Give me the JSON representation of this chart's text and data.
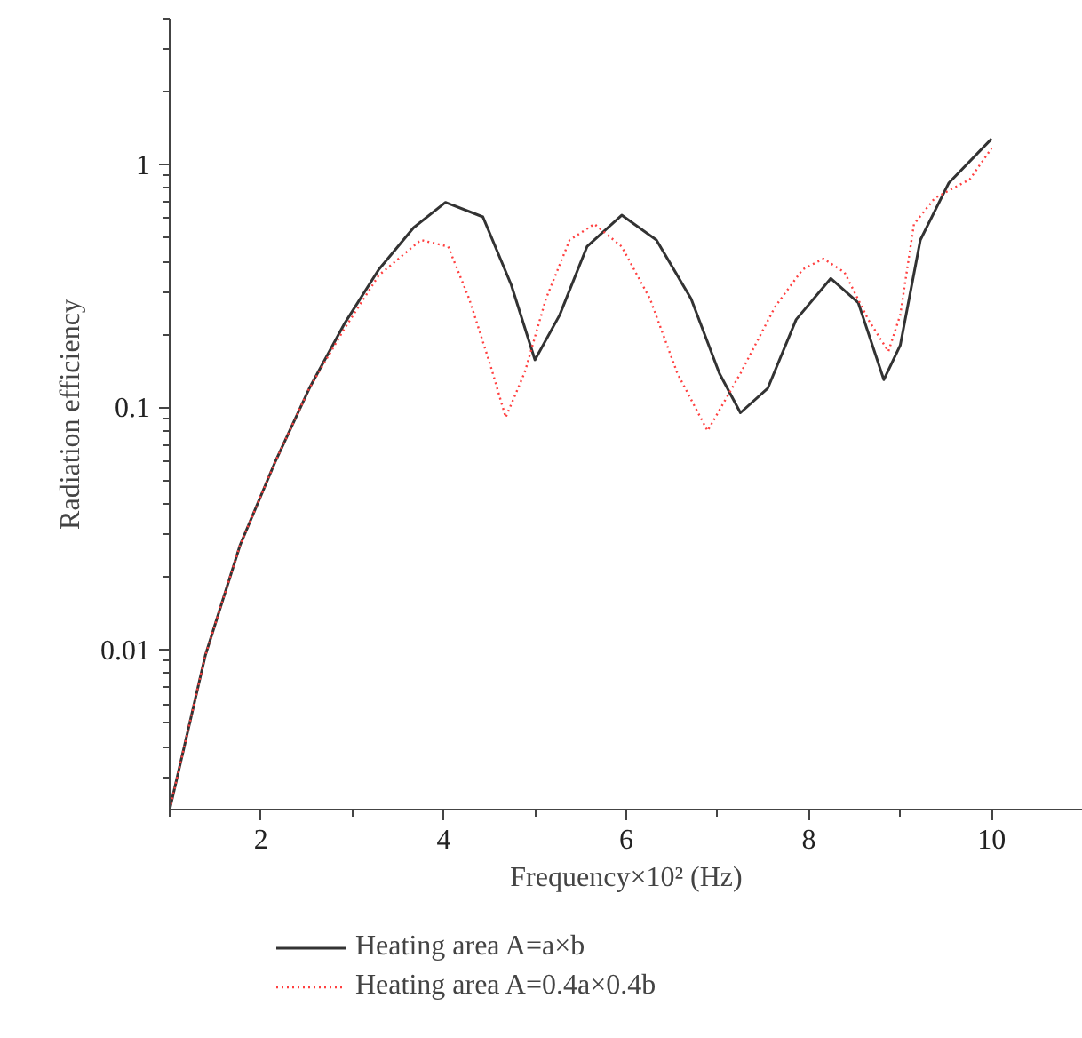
{
  "chart_data": {
    "type": "line",
    "xlabel": "Frequency×10² (Hz)",
    "ylabel": "Radiation efficiency",
    "xlim": [
      1,
      11
    ],
    "xticks": [
      2,
      4,
      6,
      8,
      10
    ],
    "ylim": [
      0.0022,
      4
    ],
    "yticks": [
      0.01,
      0.1,
      1
    ],
    "log": "y",
    "grid": false,
    "legend": "bottom",
    "marker": "none",
    "series": [
      {
        "name": "Heating area A=a×b",
        "color": "#333333",
        "line_style": "solid",
        "x": [
          1.0,
          1.39,
          1.77,
          2.15,
          2.53,
          2.91,
          3.29,
          3.67,
          4.02,
          4.43,
          4.74,
          5.0,
          5.27,
          5.57,
          5.95,
          6.33,
          6.71,
          7.02,
          7.25,
          7.55,
          7.86,
          8.24,
          8.54,
          8.82,
          9.0,
          9.22,
          9.53,
          10.0
        ],
        "values": [
          0.0022,
          0.0095,
          0.027,
          0.059,
          0.12,
          0.22,
          0.37,
          0.55,
          0.7,
          0.61,
          0.32,
          0.157,
          0.24,
          0.46,
          0.62,
          0.49,
          0.28,
          0.138,
          0.095,
          0.12,
          0.23,
          0.34,
          0.27,
          0.13,
          0.18,
          0.49,
          0.84,
          1.28
        ]
      },
      {
        "name": "Heating area A=0.4a×0.4b",
        "color": "#ff4040",
        "line_style": "dotted",
        "x": [
          1.0,
          1.39,
          1.77,
          2.15,
          2.53,
          2.91,
          3.29,
          3.75,
          4.05,
          4.28,
          4.51,
          4.68,
          4.89,
          5.12,
          5.38,
          5.65,
          5.95,
          6.26,
          6.56,
          6.89,
          7.25,
          7.63,
          7.93,
          8.16,
          8.39,
          8.65,
          8.87,
          9.0,
          9.15,
          9.38,
          9.76,
          10.0
        ],
        "values": [
          0.0022,
          0.0095,
          0.027,
          0.059,
          0.12,
          0.21,
          0.35,
          0.49,
          0.46,
          0.28,
          0.15,
          0.091,
          0.14,
          0.28,
          0.49,
          0.57,
          0.46,
          0.28,
          0.138,
          0.08,
          0.138,
          0.26,
          0.37,
          0.41,
          0.36,
          0.23,
          0.17,
          0.24,
          0.57,
          0.73,
          0.87,
          1.17
        ]
      }
    ]
  }
}
